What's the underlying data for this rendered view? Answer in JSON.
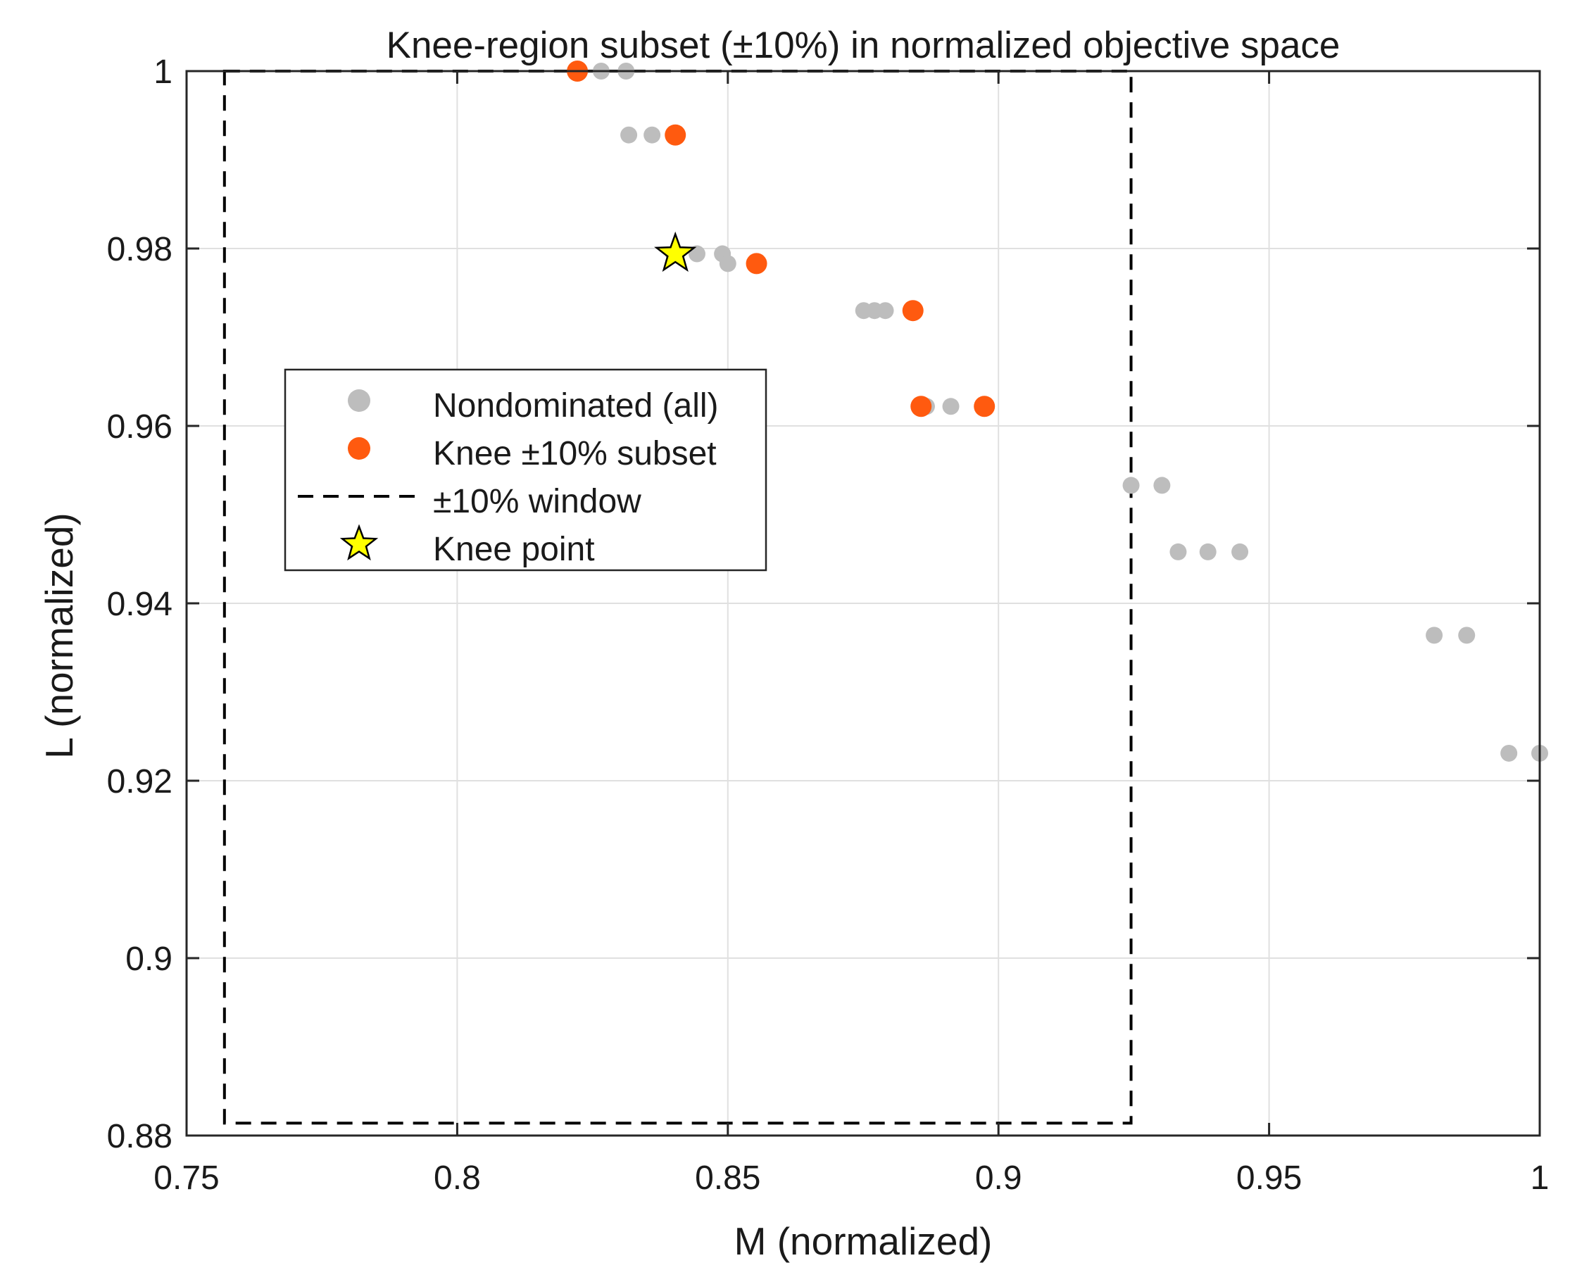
{
  "chart_data": {
    "type": "scatter",
    "title": "Knee-region subset (±10%) in normalized objective space",
    "xlabel": "M (normalized)",
    "ylabel": "L (normalized)",
    "xlim": [
      0.75,
      1.0
    ],
    "ylim": [
      0.88,
      1.0
    ],
    "xticks": [
      0.75,
      0.8,
      0.85,
      0.9,
      0.95,
      1.0
    ],
    "xtick_labels": [
      "0.75",
      "0.8",
      "0.85",
      "0.9",
      "0.95",
      "1"
    ],
    "yticks": [
      0.88,
      0.9,
      0.92,
      0.94,
      0.96,
      0.98,
      1.0
    ],
    "ytick_labels": [
      "0.88",
      "0.9",
      "0.92",
      "0.94",
      "0.96",
      "0.98",
      "1"
    ],
    "grid": true,
    "legend_position": "center-left",
    "colors": {
      "nondominated": "#bdbdbd",
      "knee_subset": "#ff5a0f",
      "window": "#000000",
      "knee_point_fill": "#ffff00",
      "knee_point_edge": "#000000",
      "grid": "#e0e0e0",
      "axes": "#262626"
    },
    "series": [
      {
        "name": "Nondominated (all)",
        "marker": "circle",
        "points": [
          [
            0.8222,
            1.0
          ],
          [
            0.8266,
            1.0
          ],
          [
            0.8312,
            1.0
          ],
          [
            0.8317,
            0.9928
          ],
          [
            0.836,
            0.9928
          ],
          [
            0.8403,
            0.9928
          ],
          [
            0.84,
            0.9794
          ],
          [
            0.8443,
            0.9794
          ],
          [
            0.849,
            0.9794
          ],
          [
            0.85,
            0.9783
          ],
          [
            0.8553,
            0.9783
          ],
          [
            0.8751,
            0.973
          ],
          [
            0.8771,
            0.973
          ],
          [
            0.8791,
            0.973
          ],
          [
            0.8842,
            0.973
          ],
          [
            0.8867,
            0.9622
          ],
          [
            0.8912,
            0.9622
          ],
          [
            0.8974,
            0.9622
          ],
          [
            0.9245,
            0.9533
          ],
          [
            0.9302,
            0.9533
          ],
          [
            0.9332,
            0.9458
          ],
          [
            0.9387,
            0.9458
          ],
          [
            0.9446,
            0.9458
          ],
          [
            0.9805,
            0.9364
          ],
          [
            0.9865,
            0.9364
          ],
          [
            0.9943,
            0.9231
          ],
          [
            1.0,
            0.9231
          ]
        ]
      },
      {
        "name": "Knee ±10% subset",
        "marker": "circle",
        "points": [
          [
            0.8222,
            1.0
          ],
          [
            0.8403,
            0.9928
          ],
          [
            0.8553,
            0.9783
          ],
          [
            0.8842,
            0.973
          ],
          [
            0.8857,
            0.9622
          ],
          [
            0.8974,
            0.9622
          ]
        ]
      },
      {
        "name": "±10% window",
        "style": "dashed-rectangle",
        "x_range": [
          0.757,
          0.9245
        ],
        "y_range": [
          0.8814,
          1.0
        ]
      },
      {
        "name": "Knee point",
        "marker": "star",
        "points": [
          [
            0.8403,
            0.9794
          ]
        ]
      }
    ],
    "legend_labels": [
      "Nondominated (all)",
      "Knee ±10% subset",
      "±10% window",
      "Knee point"
    ]
  }
}
